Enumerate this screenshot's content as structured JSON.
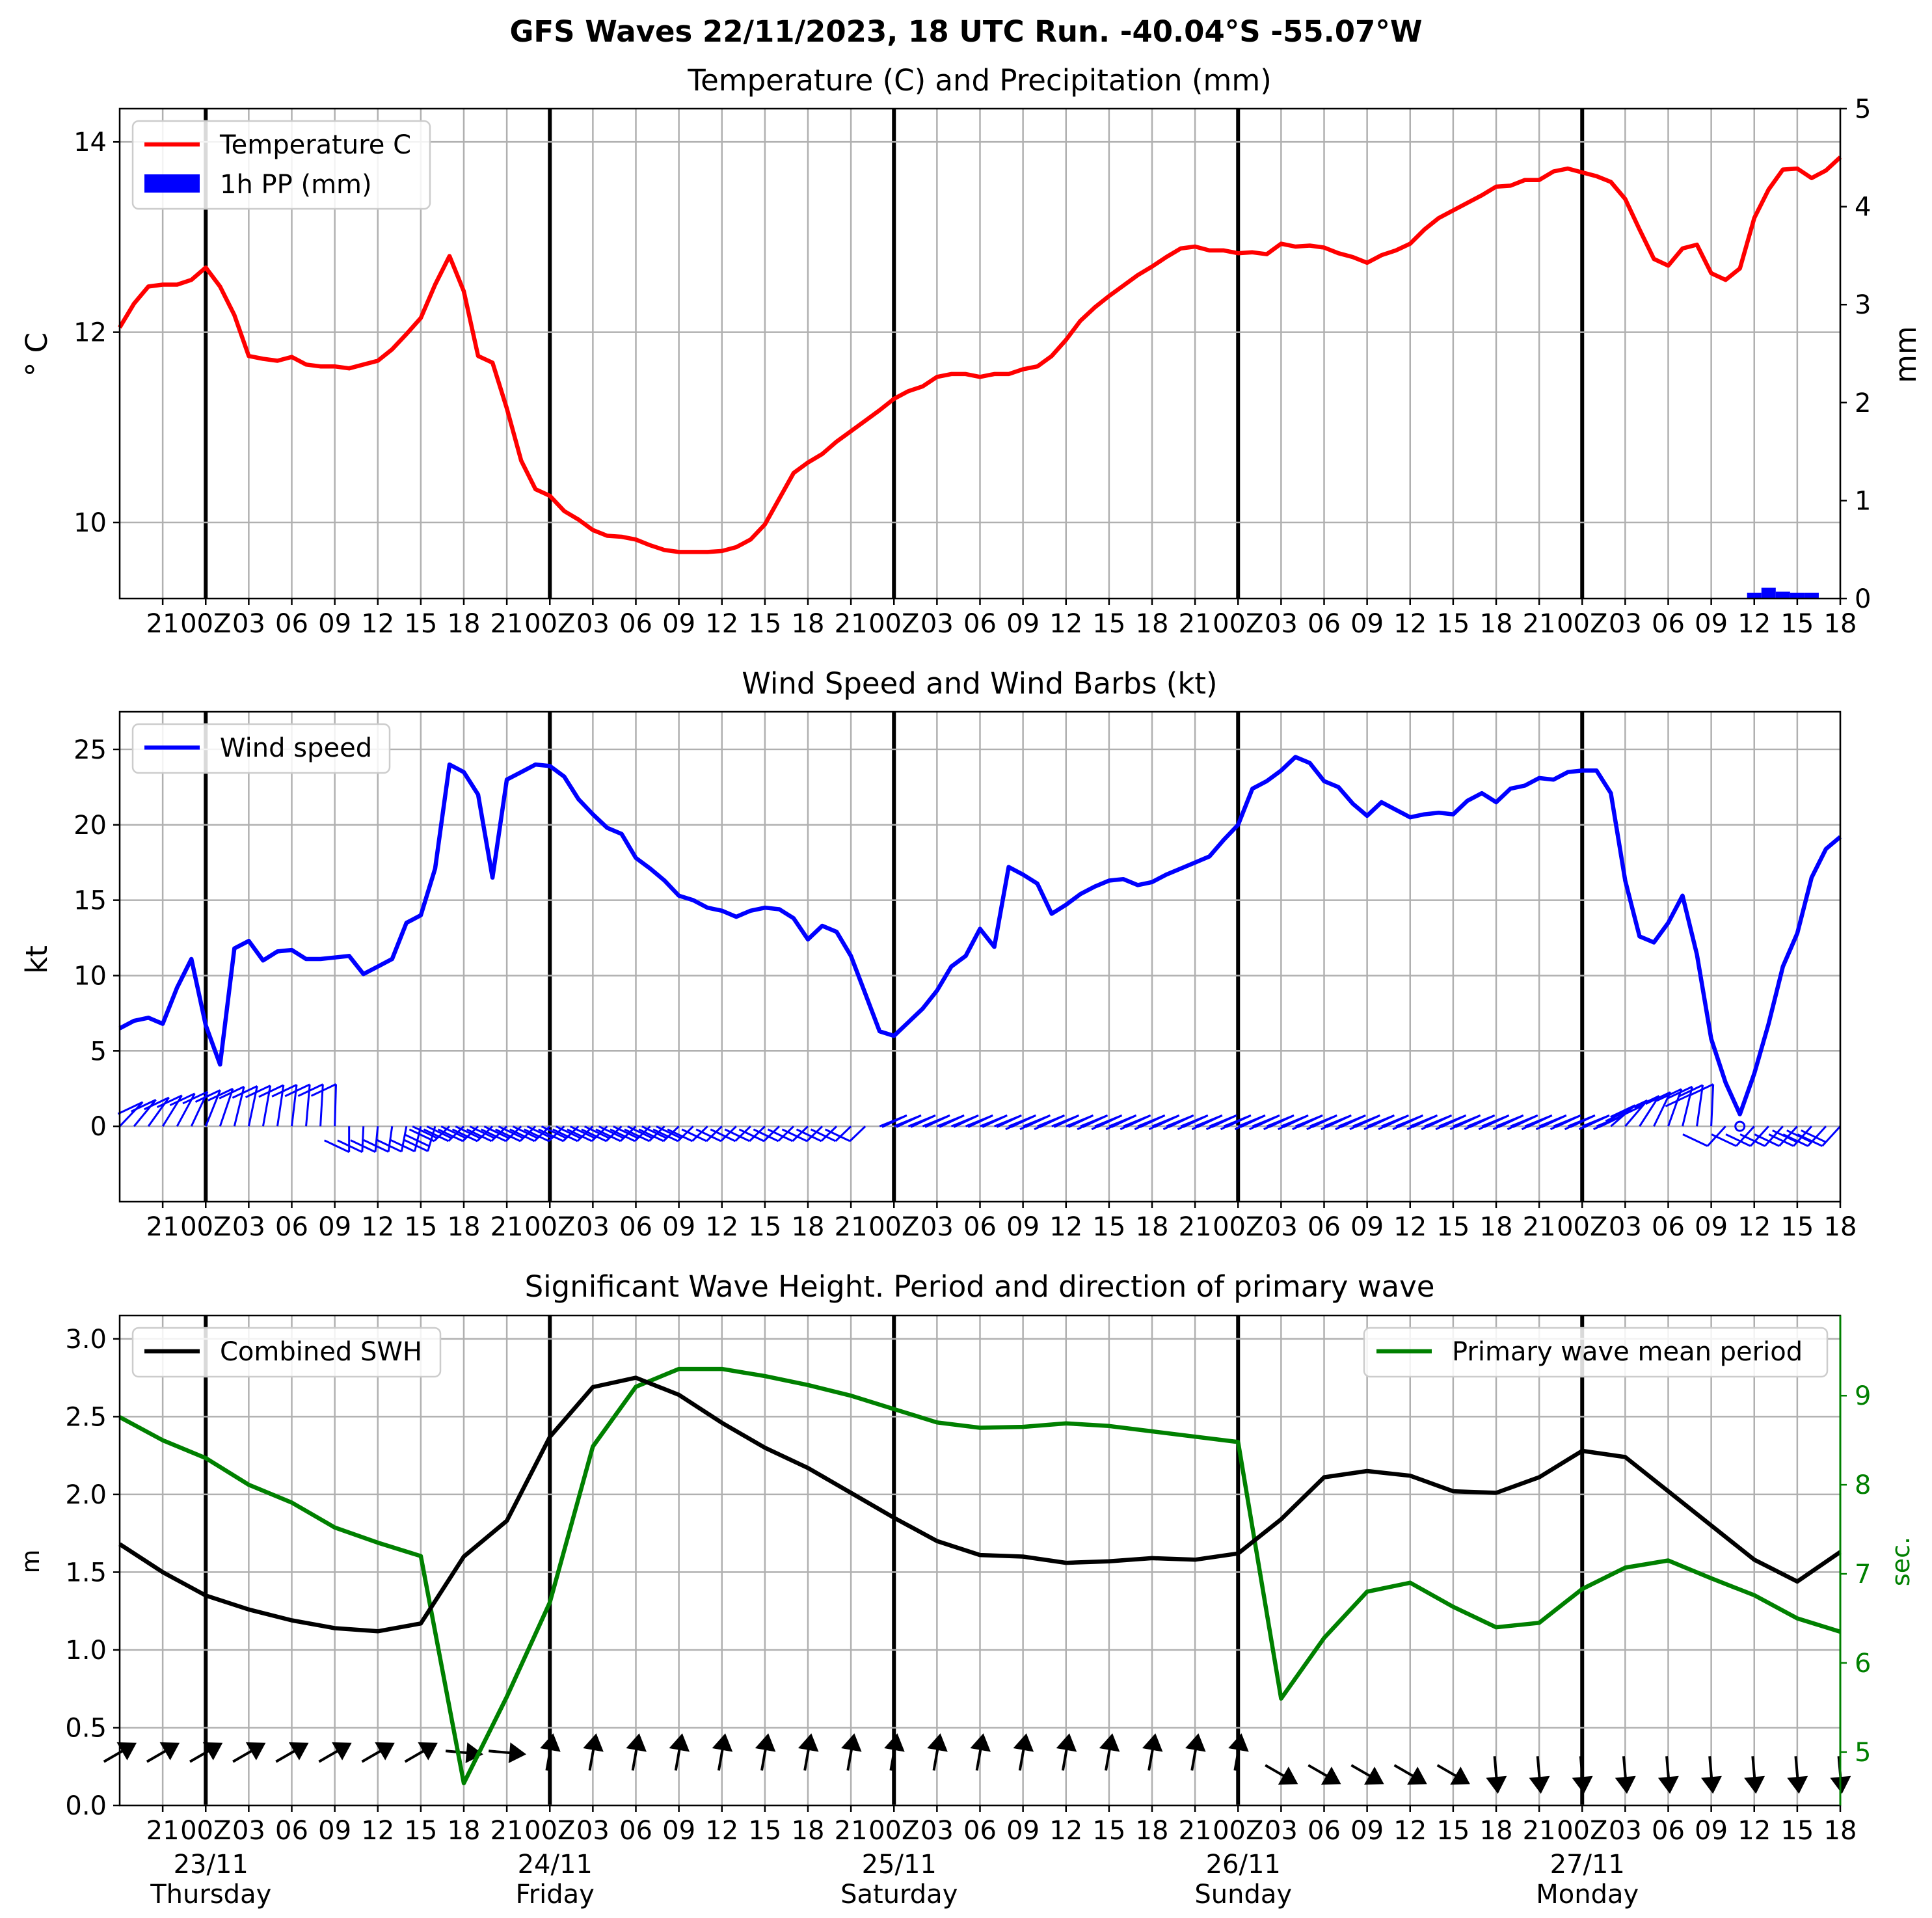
{
  "suptitle": "GFS Waves 22/11/2023, 18 UTC Run. -40.04°S -55.07°W",
  "colors": {
    "temp": "#ff0000",
    "precip": "#0000ff",
    "wind": "#0000ff",
    "swh": "#000000",
    "period": "#008000",
    "grid": "#b0b0b0",
    "day": "#000000"
  },
  "chart_data": [
    {
      "type": "line",
      "title": "Temperature (C) and Precipitation (mm)",
      "ylabel": "$^\\circ$C",
      "ylabel_right": "mm",
      "ylim": [
        9.2,
        14.35
      ],
      "ylim_right": [
        0,
        5
      ],
      "yticks": [
        10,
        12,
        14
      ],
      "yticks_right": [
        0,
        1,
        2,
        3,
        4,
        5
      ],
      "xticklabels": [
        "21",
        "00Z",
        "03",
        "06",
        "09",
        "12",
        "15",
        "18",
        "21",
        "00Z",
        "03",
        "06",
        "09",
        "12",
        "15",
        "18",
        "21",
        "00Z",
        "03",
        "06",
        "09",
        "12",
        "15",
        "18",
        "21",
        "00Z",
        "03",
        "06",
        "09",
        "12",
        "15",
        "18",
        "21",
        "00Z",
        "03",
        "06",
        "09",
        "12",
        "15",
        "18"
      ],
      "legend": [
        "Temperature C",
        "1h PP (mm)"
      ],
      "legend_loc": "upper left",
      "grid": true,
      "series": [
        {
          "name": "Temperature C",
          "x_hours_from_run": [
            0,
            1,
            2,
            3,
            4,
            5,
            6,
            7,
            8,
            9,
            10,
            11,
            12,
            13,
            14,
            15,
            16,
            17,
            18,
            19,
            20,
            21,
            22,
            23,
            24,
            25,
            26,
            27,
            28,
            29,
            30,
            31,
            32,
            33,
            34,
            35,
            36,
            37,
            38,
            39,
            40,
            41,
            42,
            43,
            44,
            45,
            46,
            47,
            48,
            49,
            50,
            51,
            52,
            53,
            54,
            55,
            56,
            57,
            58,
            59,
            60,
            61,
            62,
            63,
            64,
            65,
            66,
            67,
            68,
            69,
            70,
            71,
            72,
            73,
            74,
            75,
            76,
            77,
            78,
            79,
            80,
            81,
            82,
            83,
            84,
            85,
            86,
            87,
            88,
            89,
            90,
            91,
            92,
            93,
            94,
            95,
            96,
            97,
            98,
            99,
            100,
            101,
            102,
            103,
            104,
            105,
            106,
            107,
            108,
            109,
            110,
            111,
            112,
            113,
            114,
            115,
            116,
            117,
            118,
            119,
            120
          ],
          "values": [
            12.05,
            12.3,
            12.48,
            12.5,
            12.5,
            12.55,
            12.68,
            12.48,
            12.18,
            11.75,
            11.72,
            11.7,
            11.74,
            11.66,
            11.64,
            11.64,
            11.62,
            11.66,
            11.7,
            11.82,
            11.98,
            12.15,
            12.5,
            12.8,
            12.43,
            11.75,
            11.68,
            11.2,
            10.65,
            10.35,
            10.28,
            10.12,
            10.03,
            9.92,
            9.86,
            9.85,
            9.82,
            9.76,
            9.71,
            9.69,
            9.69,
            9.69,
            9.7,
            9.74,
            9.82,
            9.98,
            10.25,
            10.52,
            10.63,
            10.72,
            10.85,
            10.96,
            11.07,
            11.18,
            11.3,
            11.38,
            11.43,
            11.53,
            11.56,
            11.56,
            11.53,
            11.56,
            11.56,
            11.61,
            11.64,
            11.75,
            11.92,
            12.12,
            12.26,
            12.38,
            12.49,
            12.6,
            12.69,
            12.79,
            12.88,
            12.9,
            12.86,
            12.86,
            12.83,
            12.84,
            12.82,
            12.93,
            12.9,
            12.91,
            12.89,
            12.83,
            12.79,
            12.73,
            12.81,
            12.86,
            12.93,
            13.08,
            13.2,
            13.28,
            13.36,
            13.44,
            13.53,
            13.54,
            13.6,
            13.6,
            13.69,
            13.72,
            13.68,
            13.64,
            13.58,
            13.4,
            13.08,
            12.77,
            12.7,
            12.88,
            12.92,
            12.62,
            12.55,
            12.67,
            13.2,
            13.5,
            13.71,
            13.72,
            13.62,
            13.7,
            13.84
          ]
        },
        {
          "name": "1h PP (mm)",
          "axis": "right",
          "bars": [
            {
              "x_hour": 114,
              "value": 0.06
            },
            {
              "x_hour": 115,
              "value": 0.11
            },
            {
              "x_hour": 116,
              "value": 0.07
            },
            {
              "x_hour": 117,
              "value": 0.06
            },
            {
              "x_hour": 118,
              "value": 0.06
            }
          ]
        }
      ]
    },
    {
      "type": "line",
      "title": "Wind Speed and Wind Barbs (kt)",
      "ylabel": "kt",
      "ylim": [
        -5,
        27.5
      ],
      "yticks": [
        0,
        5,
        10,
        15,
        20,
        25
      ],
      "xticklabels": [
        "21",
        "00Z",
        "03",
        "06",
        "09",
        "12",
        "15",
        "18",
        "21",
        "00Z",
        "03",
        "06",
        "09",
        "12",
        "15",
        "18",
        "21",
        "00Z",
        "03",
        "06",
        "09",
        "12",
        "15",
        "18",
        "21",
        "00Z",
        "03",
        "06",
        "09",
        "12",
        "15",
        "18",
        "21",
        "00Z",
        "03",
        "06",
        "09",
        "12",
        "15",
        "18"
      ],
      "legend": [
        "Wind speed"
      ],
      "legend_loc": "upper left",
      "grid": true,
      "series": [
        {
          "name": "Wind speed",
          "x_hours_from_run": [
            0,
            1,
            2,
            3,
            4,
            5,
            6,
            7,
            8,
            9,
            10,
            11,
            12,
            13,
            14,
            15,
            16,
            17,
            18,
            19,
            20,
            21,
            22,
            23,
            24,
            25,
            26,
            27,
            28,
            29,
            30,
            31,
            32,
            33,
            34,
            35,
            36,
            37,
            38,
            39,
            40,
            41,
            42,
            43,
            44,
            45,
            46,
            47,
            48,
            49,
            50,
            51,
            52,
            53,
            54,
            55,
            56,
            57,
            58,
            59,
            60,
            61,
            62,
            63,
            64,
            65,
            66,
            67,
            68,
            69,
            70,
            71,
            72,
            73,
            74,
            75,
            76,
            77,
            78,
            79,
            80,
            81,
            82,
            83,
            84,
            85,
            86,
            87,
            88,
            89,
            90,
            91,
            92,
            93,
            94,
            95,
            96,
            97,
            98,
            99,
            100,
            101,
            102,
            103,
            104,
            105,
            106,
            107,
            108,
            109,
            110,
            111,
            112,
            113,
            114,
            115,
            116,
            117,
            118,
            119,
            120
          ],
          "values": [
            6.5,
            7.0,
            7.2,
            6.8,
            9.2,
            11.1,
            6.7,
            4.1,
            11.8,
            12.3,
            11.0,
            11.6,
            11.7,
            11.1,
            11.1,
            11.2,
            11.3,
            10.1,
            10.6,
            11.1,
            13.5,
            14.0,
            17.1,
            24.0,
            23.5,
            22.0,
            16.5,
            23.0,
            23.5,
            24.0,
            23.9,
            23.2,
            21.7,
            20.7,
            19.8,
            19.4,
            17.8,
            17.1,
            16.3,
            15.3,
            15.0,
            14.5,
            14.3,
            13.9,
            14.3,
            14.5,
            14.4,
            13.8,
            12.4,
            13.3,
            12.9,
            11.3,
            8.8,
            6.3,
            6.0,
            6.9,
            7.8,
            9.0,
            10.6,
            11.3,
            13.1,
            11.9,
            17.2,
            16.7,
            16.1,
            14.1,
            14.7,
            15.4,
            15.9,
            16.3,
            16.4,
            16.0,
            16.2,
            16.7,
            17.1,
            17.5,
            17.9,
            19.0,
            20.0,
            22.4,
            22.9,
            23.6,
            24.5,
            24.1,
            22.9,
            22.5,
            21.4,
            20.6,
            21.5,
            21.0,
            20.5,
            20.7,
            20.8,
            20.7,
            21.6,
            22.1,
            21.5,
            22.4,
            22.6,
            23.1,
            23.0,
            23.5,
            23.6,
            23.6,
            22.1,
            16.3,
            12.6,
            12.2,
            13.5,
            15.3,
            11.4,
            5.8,
            2.9,
            0.8,
            3.5,
            6.8,
            10.6,
            12.8,
            16.5,
            18.4,
            19.2
          ]
        },
        {
          "name": "wind barbs",
          "style": "barbs",
          "color": "#0000ff"
        }
      ]
    },
    {
      "type": "line",
      "title": "Significant Wave Height. Period and direction of primary wave",
      "ylabel": "m",
      "ylabel_right": "sec.",
      "ylim": [
        0,
        3.15
      ],
      "ylim_right": [
        4.4,
        9.9
      ],
      "yticks": [
        0.0,
        0.5,
        1.0,
        1.5,
        2.0,
        2.5,
        3.0
      ],
      "yticks_right": [
        5,
        6,
        7,
        8,
        9
      ],
      "xticklabels": [
        "21",
        "00Z",
        "03",
        "06",
        "09",
        "12",
        "15",
        "18",
        "21",
        "00Z",
        "03",
        "06",
        "09",
        "12",
        "15",
        "18",
        "21",
        "00Z",
        "03",
        "06",
        "09",
        "12",
        "15",
        "18",
        "21",
        "00Z",
        "03",
        "06",
        "09",
        "12",
        "15",
        "18",
        "21",
        "00Z",
        "03",
        "06",
        "09",
        "12",
        "15",
        "18"
      ],
      "date_labels": [
        {
          "date": "23/11",
          "day": "Thursday"
        },
        {
          "date": "24/11",
          "day": "Friday"
        },
        {
          "date": "25/11",
          "day": "Saturday"
        },
        {
          "date": "26/11",
          "day": "Sunday"
        },
        {
          "date": "27/11",
          "day": "Monday"
        }
      ],
      "legend": [
        "Combined SWH",
        "Primary wave mean period"
      ],
      "legend_loc": [
        "upper left",
        "upper right"
      ],
      "grid": true,
      "series": [
        {
          "name": "Combined SWH",
          "x_hours_from_run": [
            0,
            3,
            6,
            9,
            12,
            15,
            18,
            21,
            24,
            27,
            30,
            33,
            36,
            39,
            42,
            45,
            48,
            51,
            54,
            57,
            60,
            63,
            66,
            69,
            72,
            75,
            78,
            81,
            84,
            87,
            90,
            93,
            96,
            99,
            102,
            105,
            108,
            111,
            114,
            117,
            120
          ],
          "values": [
            1.68,
            1.5,
            1.35,
            1.26,
            1.19,
            1.14,
            1.12,
            1.17,
            1.6,
            1.83,
            2.37,
            2.69,
            2.75,
            2.64,
            2.46,
            2.3,
            2.17,
            2.01,
            1.85,
            1.7,
            1.61,
            1.6,
            1.56,
            1.57,
            1.59,
            1.58,
            1.62,
            1.84,
            2.11,
            2.15,
            2.12,
            2.02,
            2.01,
            2.11,
            2.28,
            2.24,
            2.02,
            1.8,
            1.58,
            1.44,
            1.63
          ]
        },
        {
          "name": "Primary wave mean period",
          "axis": "right",
          "x_hours_from_run": [
            0,
            3,
            6,
            9,
            12,
            15,
            18,
            21,
            24,
            27,
            30,
            33,
            36,
            39,
            42,
            45,
            48,
            51,
            54,
            57,
            60,
            63,
            66,
            69,
            72,
            75,
            78,
            81,
            84,
            87,
            90,
            93,
            96,
            99,
            102,
            105,
            108,
            111,
            114,
            117,
            120
          ],
          "values": [
            8.76,
            8.5,
            8.3,
            8.0,
            7.8,
            7.52,
            7.35,
            7.2,
            4.65,
            5.62,
            6.68,
            8.43,
            9.1,
            9.3,
            9.3,
            9.22,
            9.12,
            9.0,
            8.85,
            8.7,
            8.64,
            8.65,
            8.69,
            8.66,
            8.6,
            8.54,
            8.48,
            5.6,
            6.28,
            6.8,
            6.9,
            6.63,
            6.4,
            6.45,
            6.83,
            7.07,
            7.15,
            6.95,
            6.76,
            6.5,
            6.35
          ]
        },
        {
          "name": "primary wave direction",
          "style": "arrows",
          "color": "#000000"
        }
      ]
    }
  ]
}
